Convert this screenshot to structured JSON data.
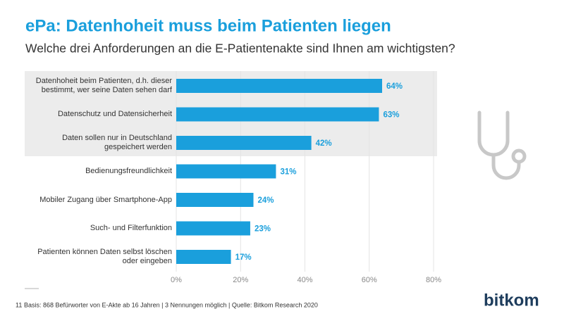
{
  "chart_data": {
    "type": "bar",
    "orientation": "horizontal",
    "title": "ePa: Datenhoheit muss beim Patienten liegen",
    "subtitle": "Welche drei Anforderungen an die E-Patientenakte sind Ihnen am wichtigsten?",
    "categories": [
      "Datenhoheit beim Patienten, d.h. dieser bestimmt, wer seine Daten sehen darf",
      "Datenschutz und Datensicherheit",
      "Daten sollen nur in Deutschland gespeichert werden",
      "Bedienungsfreundlichkeit",
      "Mobiler Zugang über Smartphone-App",
      "Such- und Filterfunktion",
      "Patienten können Daten selbst löschen oder eingeben"
    ],
    "values": [
      64,
      63,
      42,
      31,
      24,
      23,
      17
    ],
    "value_labels": [
      "64%",
      "63%",
      "42%",
      "31%",
      "24%",
      "23%",
      "17%"
    ],
    "color": "#1a9fdc",
    "xlim": [
      0,
      80
    ],
    "xticks": [
      {
        "value": 0,
        "label": "0%"
      },
      {
        "value": 20,
        "label": "20%"
      },
      {
        "value": 40,
        "label": "40%"
      },
      {
        "value": 60,
        "label": "60%"
      },
      {
        "value": 80,
        "label": "80%"
      }
    ],
    "grid": true,
    "footnote": "Basis: 868 Befürworter von E-Akte ab 16 Jahren | 3 Nennungen möglich | Quelle: Bitkom Research 2020",
    "page_number": "11",
    "logo": "bitkom"
  }
}
